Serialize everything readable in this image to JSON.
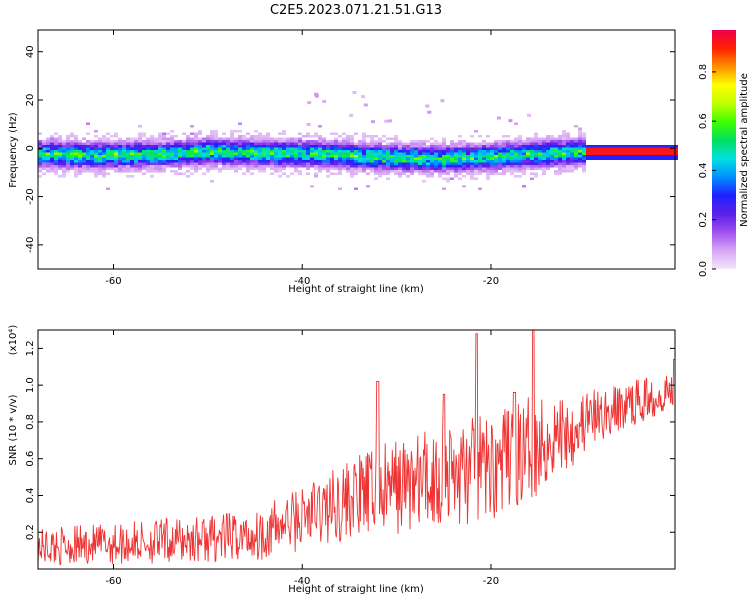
{
  "title": "C2E5.2023.071.21.51.G13",
  "chart_data": [
    {
      "type": "heatmap",
      "xlabel": "Height of straight line (km)",
      "ylabel": "Frequency (Hz)",
      "xlim": [
        -68,
        -0.5
      ],
      "ylim": [
        -50,
        49
      ],
      "xticks": [
        -60,
        -40,
        -20
      ],
      "yticks": [
        -40,
        -20,
        0,
        20,
        40
      ],
      "grid": false,
      "colorbar": {
        "label": "Normalized spectral amplitude",
        "range": [
          0,
          0.97
        ],
        "ticks": [
          0.0,
          0.2,
          0.4,
          0.6,
          0.8
        ],
        "colors": [
          "#f2e6fa",
          "#d9a6f5",
          "#a050f0",
          "#5a20e8",
          "#2020ff",
          "#0090ff",
          "#00e0e0",
          "#00e060",
          "#40ff00",
          "#c0ff00",
          "#ffff00",
          "#ff9000",
          "#ff2000",
          "#f0004a"
        ]
      },
      "ridge": {
        "center_hz": [
          [
            -68,
            -2.5
          ],
          [
            -64,
            -2.8
          ],
          [
            -60,
            -3
          ],
          [
            -55,
            -2.5
          ],
          [
            -50,
            -1.5
          ],
          [
            -45,
            -2
          ],
          [
            -40,
            -2.2
          ],
          [
            -35,
            -3
          ],
          [
            -30,
            -4
          ],
          [
            -25,
            -4.5
          ],
          [
            -20,
            -3.5
          ],
          [
            -15,
            -2.5
          ],
          [
            -10,
            -1.5
          ],
          [
            -5,
            -1.5
          ],
          [
            -0.5,
            -1.5
          ]
        ],
        "strong_band": {
          "x_from": -10,
          "x_to": -0.5,
          "freq_hz": -1.5,
          "amplitude": 0.95
        }
      }
    },
    {
      "type": "line",
      "xlabel": "Height of straight line (km)",
      "ylabel": "SNR (10 * v/v)",
      "yunit": "(x10⁴)",
      "xlim": [
        -68,
        -0.5
      ],
      "ylim": [
        0,
        1.3
      ],
      "xticks": [
        -60,
        -40,
        -20
      ],
      "yticks": [
        0.2,
        0.4,
        0.6,
        0.8,
        1.0,
        1.2
      ],
      "series": [
        {
          "color": "#ee3333",
          "trend": [
            [
              -68,
              0.12
            ],
            [
              -55,
              0.15
            ],
            [
              -45,
              0.18
            ],
            [
              -40,
              0.28
            ],
            [
              -35,
              0.38
            ],
            [
              -30,
              0.45
            ],
            [
              -25,
              0.5
            ],
            [
              -20,
              0.55
            ],
            [
              -15,
              0.68
            ],
            [
              -10,
              0.8
            ],
            [
              -5,
              0.9
            ],
            [
              -0.5,
              0.98
            ]
          ],
          "spread": [
            [
              -68,
              0.1
            ],
            [
              -45,
              0.14
            ],
            [
              -35,
              0.22
            ],
            [
              -25,
              0.3
            ],
            [
              -15,
              0.28
            ],
            [
              -8,
              0.14
            ],
            [
              -0.5,
              0.1
            ]
          ],
          "spikes": [
            [
              -32,
              1.02
            ],
            [
              -25,
              0.95
            ],
            [
              -21.5,
              1.28
            ],
            [
              -17.5,
              0.96
            ],
            [
              -15.5,
              1.3
            ],
            [
              -0.6,
              1.14
            ]
          ]
        }
      ]
    }
  ]
}
